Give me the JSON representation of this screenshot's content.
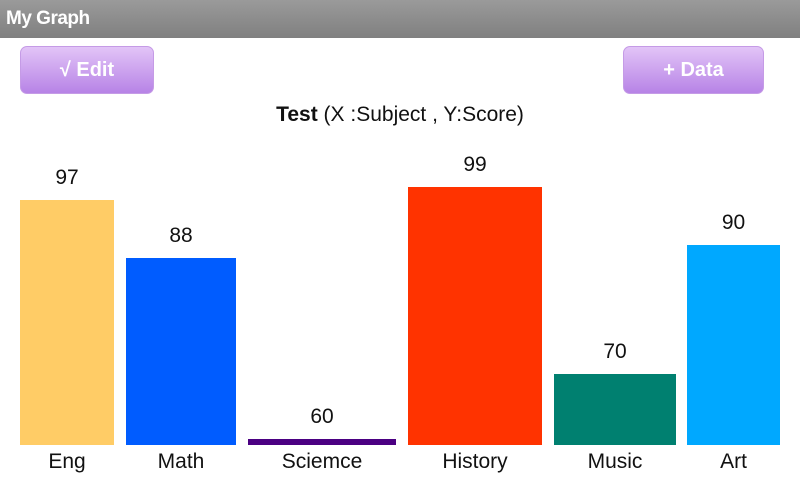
{
  "app": {
    "title": "My Graph"
  },
  "toolbar": {
    "edit_label": "√ Edit",
    "add_data_label": "+ Data"
  },
  "chart_data": {
    "type": "bar",
    "title": "Test",
    "subtitle": "(X :Subject , Y:Score)",
    "xlabel": "Subject",
    "ylabel": "Score",
    "categories": [
      "Eng",
      "Math",
      "Sciemce",
      "History",
      "Music",
      "Art"
    ],
    "values": [
      97,
      88,
      60,
      99,
      70,
      90
    ],
    "colors": [
      "#ffcc66",
      "#005cff",
      "#4b0082",
      "#ff3300",
      "#008070",
      "#00a8ff"
    ],
    "ylim": [
      59,
      99
    ],
    "grid": false,
    "legend": "none"
  }
}
